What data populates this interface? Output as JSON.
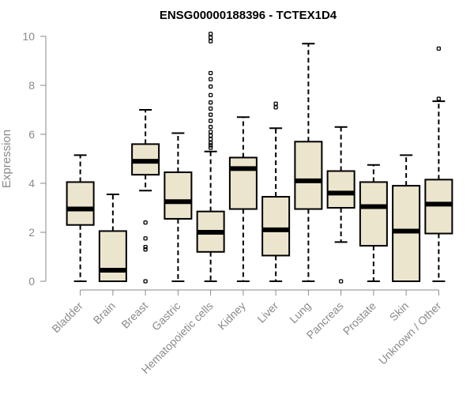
{
  "chart_data": {
    "type": "box",
    "title": "ENSG00000188396 - TCTEX1D4",
    "xlabel": "",
    "ylabel": "Expression",
    "ylim": [
      0,
      10
    ],
    "yticks": [
      0,
      2,
      4,
      6,
      8,
      10
    ],
    "grid": false,
    "legend": "none",
    "box_fill": "#ece5cd",
    "box_stroke": "#000000",
    "axis_color": "#8a8a8a",
    "categories": [
      "Bladder",
      "Brain",
      "Breast",
      "Gastric",
      "Hematopoietic cells",
      "Kidney",
      "Liver",
      "Lung",
      "Pancreas",
      "Prostate",
      "Skin",
      "Unknown / Other"
    ],
    "boxes": [
      {
        "name": "Bladder",
        "whisker_low": 0.0,
        "q1": 2.3,
        "median": 2.95,
        "q3": 4.05,
        "whisker_high": 5.15,
        "outliers": []
      },
      {
        "name": "Brain",
        "whisker_low": 0.0,
        "q1": 0.0,
        "median": 0.45,
        "q3": 2.05,
        "whisker_high": 3.55,
        "outliers": []
      },
      {
        "name": "Breast",
        "whisker_low": 3.7,
        "q1": 4.35,
        "median": 4.9,
        "q3": 5.6,
        "whisker_high": 7.0,
        "outliers": [
          2.4,
          1.75,
          1.4,
          1.3,
          0.0
        ]
      },
      {
        "name": "Gastric",
        "whisker_low": 0.0,
        "q1": 2.55,
        "median": 3.25,
        "q3": 4.45,
        "whisker_high": 6.05,
        "outliers": []
      },
      {
        "name": "Hematopoietic cells",
        "whisker_low": 0.0,
        "q1": 1.2,
        "median": 2.0,
        "q3": 2.85,
        "whisker_high": 5.3,
        "outliers": [
          10.1,
          9.95,
          9.8,
          8.5,
          8.25,
          7.95,
          7.6,
          7.3,
          7.05,
          6.8,
          6.55,
          6.3,
          6.1,
          5.95,
          5.8,
          5.65,
          5.55,
          5.45
        ]
      },
      {
        "name": "Kidney",
        "whisker_low": 0.0,
        "q1": 2.95,
        "median": 4.6,
        "q3": 5.05,
        "whisker_high": 6.7,
        "outliers": []
      },
      {
        "name": "Liver",
        "whisker_low": 0.0,
        "q1": 1.05,
        "median": 2.1,
        "q3": 3.45,
        "whisker_high": 6.25,
        "outliers": [
          7.25,
          7.1
        ]
      },
      {
        "name": "Lung",
        "whisker_low": 0.0,
        "q1": 2.95,
        "median": 4.1,
        "q3": 5.7,
        "whisker_high": 9.7,
        "outliers": []
      },
      {
        "name": "Pancreas",
        "whisker_low": 1.6,
        "q1": 3.0,
        "median": 3.6,
        "q3": 4.5,
        "whisker_high": 6.3,
        "outliers": [
          0.0
        ]
      },
      {
        "name": "Prostate",
        "whisker_low": 0.0,
        "q1": 1.45,
        "median": 3.05,
        "q3": 4.05,
        "whisker_high": 4.75,
        "outliers": []
      },
      {
        "name": "Skin",
        "whisker_low": 0.0,
        "q1": 0.0,
        "median": 2.05,
        "q3": 3.9,
        "whisker_high": 5.15,
        "outliers": []
      },
      {
        "name": "Unknown / Other",
        "whisker_low": 0.0,
        "q1": 1.95,
        "median": 3.15,
        "q3": 4.15,
        "whisker_high": 7.35,
        "outliers": [
          9.5,
          7.45
        ]
      }
    ]
  }
}
